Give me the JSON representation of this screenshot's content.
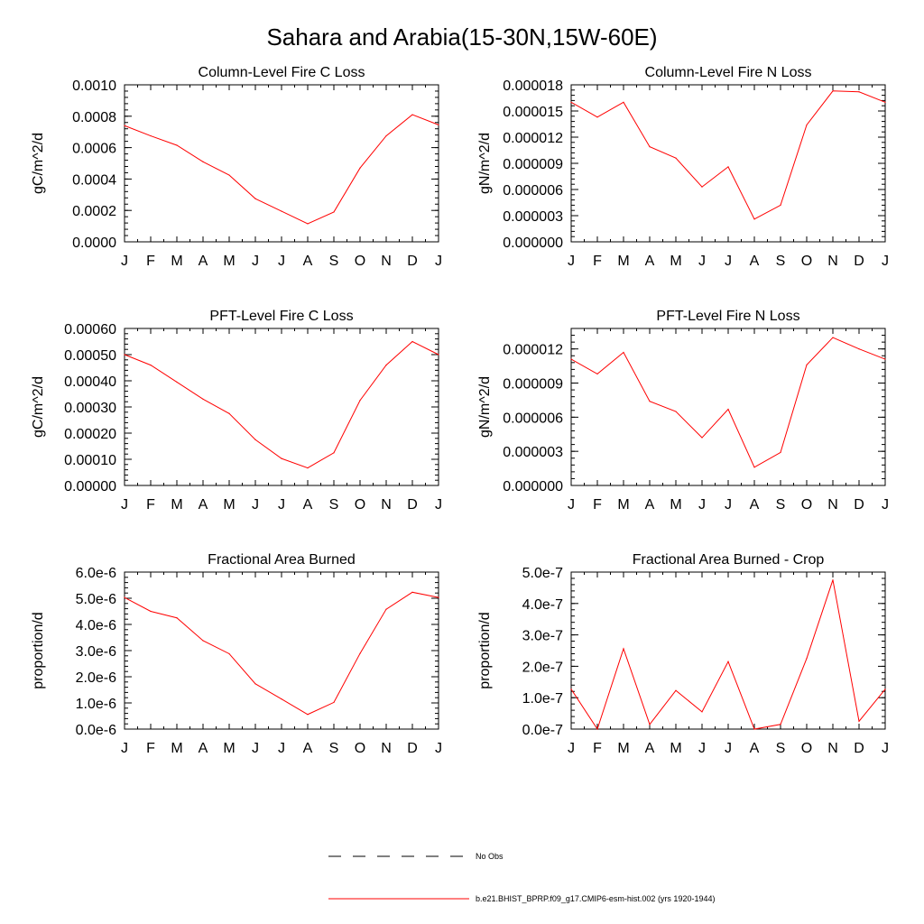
{
  "page_title": "Sahara and Arabia(15-30N,15W-60E)",
  "legend": {
    "no_obs_label": "No Obs",
    "model_label": "b.e21.BHIST_BPRP.f09_g17.CMIP6-esm-hist.002 (yrs 1920-1944)",
    "model_color": "#ff0000"
  },
  "chart_data": [
    {
      "type": "line",
      "title": "Column-Level Fire C Loss",
      "ylabel": "gC/m^2/d",
      "categories": [
        "J",
        "F",
        "M",
        "A",
        "M",
        "J",
        "J",
        "A",
        "S",
        "O",
        "N",
        "D",
        "J"
      ],
      "ylim": [
        0,
        0.001
      ],
      "yticks": [
        "0.0000",
        "0.0002",
        "0.0004",
        "0.0006",
        "0.0008",
        "0.0010"
      ],
      "series": [
        {
          "color": "#ff0000",
          "values": [
            0.00074,
            0.000675,
            0.000615,
            0.00051,
            0.000425,
            0.000275,
            0.000195,
            0.000115,
            0.00019,
            0.00047,
            0.000675,
            0.00081,
            0.000745
          ]
        }
      ]
    },
    {
      "type": "line",
      "title": "Column-Level Fire N Loss",
      "ylabel": "gN/m^2/d",
      "categories": [
        "J",
        "F",
        "M",
        "A",
        "M",
        "J",
        "J",
        "A",
        "S",
        "O",
        "N",
        "D",
        "J"
      ],
      "ylim": [
        0,
        1.8e-05
      ],
      "yticks": [
        "0.000000",
        "0.000003",
        "0.000006",
        "0.000009",
        "0.000012",
        "0.000015",
        "0.000018"
      ],
      "series": [
        {
          "color": "#ff0000",
          "values": [
            1.6e-05,
            1.43e-05,
            1.6e-05,
            1.09e-05,
            9.6e-06,
            6.3e-06,
            8.6e-06,
            2.6e-06,
            4.2e-06,
            1.34e-05,
            1.73e-05,
            1.72e-05,
            1.6e-05
          ]
        }
      ]
    },
    {
      "type": "line",
      "title": "PFT-Level Fire C Loss",
      "ylabel": "gC/m^2/d",
      "categories": [
        "J",
        "F",
        "M",
        "A",
        "M",
        "J",
        "J",
        "A",
        "S",
        "O",
        "N",
        "D",
        "J"
      ],
      "ylim": [
        0,
        0.0006
      ],
      "yticks": [
        "0.00000",
        "0.00010",
        "0.00020",
        "0.00030",
        "0.00040",
        "0.00050",
        "0.00060"
      ],
      "series": [
        {
          "color": "#ff0000",
          "values": [
            0.0005,
            0.00046,
            0.000395,
            0.00033,
            0.000275,
            0.000175,
            0.000103,
            6.7e-05,
            0.000125,
            0.000325,
            0.00046,
            0.00055,
            0.0005
          ]
        }
      ]
    },
    {
      "type": "line",
      "title": "PFT-Level Fire N Loss",
      "ylabel": "gN/m^2/d",
      "categories": [
        "J",
        "F",
        "M",
        "A",
        "M",
        "J",
        "J",
        "A",
        "S",
        "O",
        "N",
        "D",
        "J"
      ],
      "ylim": [
        0,
        1.38e-05
      ],
      "yticks": [
        "0.000000",
        "0.000003",
        "0.000006",
        "0.000009",
        "0.000012"
      ],
      "series": [
        {
          "color": "#ff0000",
          "values": [
            1.11e-05,
            9.8e-06,
            1.17e-05,
            7.4e-06,
            6.5e-06,
            4.2e-06,
            6.7e-06,
            1.6e-06,
            2.9e-06,
            1.06e-05,
            1.3e-05,
            1.2e-05,
            1.11e-05
          ]
        }
      ]
    },
    {
      "type": "line",
      "title": "Fractional Area Burned",
      "ylabel": "proportion/d",
      "categories": [
        "J",
        "F",
        "M",
        "A",
        "M",
        "J",
        "J",
        "A",
        "S",
        "O",
        "N",
        "D",
        "J"
      ],
      "ylim": [
        0,
        6e-06
      ],
      "yticks": [
        "0.0e-6",
        "1.0e-6",
        "2.0e-6",
        "3.0e-6",
        "4.0e-6",
        "5.0e-6",
        "6.0e-6"
      ],
      "series": [
        {
          "color": "#ff0000",
          "values": [
            5.03e-06,
            4.5e-06,
            4.25e-06,
            3.38e-06,
            2.88e-06,
            1.73e-06,
            1.15e-06,
            5.6e-07,
            1.02e-06,
            2.89e-06,
            4.58e-06,
            5.23e-06,
            5.03e-06
          ]
        }
      ]
    },
    {
      "type": "line",
      "title": "Fractional Area Burned - Crop",
      "ylabel": "proportion/d",
      "categories": [
        "J",
        "F",
        "M",
        "A",
        "M",
        "J",
        "J",
        "A",
        "S",
        "O",
        "N",
        "D",
        "J"
      ],
      "ylim": [
        0,
        5e-07
      ],
      "yticks": [
        "0.0e-7",
        "1.0e-7",
        "2.0e-7",
        "3.0e-7",
        "4.0e-7",
        "5.0e-7"
      ],
      "series": [
        {
          "color": "#ff0000",
          "values": [
            1.27e-07,
            0.0,
            2.56e-07,
            1.5e-08,
            1.23e-07,
            5.5e-08,
            2.15e-07,
            0.0,
            1.5e-08,
            2.25e-07,
            4.75e-07,
            2.5e-08,
            1.27e-07
          ]
        }
      ]
    }
  ]
}
